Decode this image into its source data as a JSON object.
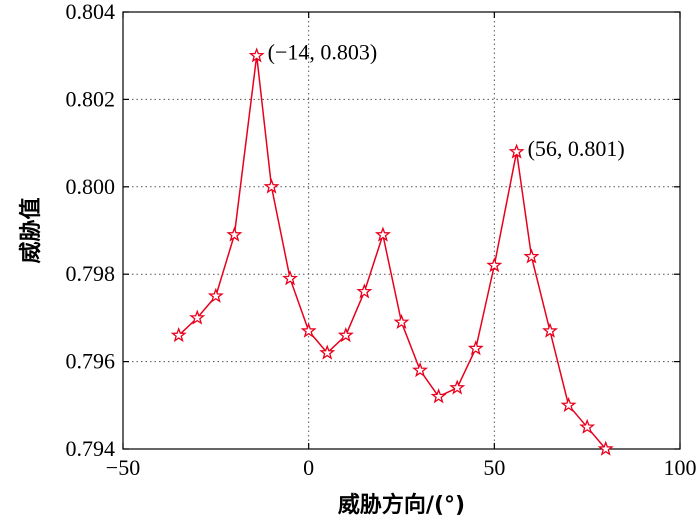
{
  "chart_data": {
    "type": "line",
    "xlabel": "威胁方向/(°)",
    "ylabel": "威胁值",
    "xlim": [
      -50,
      100
    ],
    "ylim": [
      0.794,
      0.804
    ],
    "xticks": [
      -50,
      0,
      50,
      100
    ],
    "xtick_labels": [
      "−50",
      "0",
      "50",
      "100"
    ],
    "yticks": [
      0.794,
      0.796,
      0.798,
      0.8,
      0.802,
      0.804
    ],
    "ytick_labels": [
      "0.794",
      "0.796",
      "0.798",
      "0.800",
      "0.802",
      "0.804"
    ],
    "grid": true,
    "series_color": "#e8001c",
    "marker": "star",
    "series": [
      {
        "x": [
          -35,
          -30,
          -25,
          -20,
          -14,
          -10,
          -5,
          0,
          5,
          10,
          15,
          20,
          25,
          30,
          35,
          40,
          45,
          50,
          56,
          60,
          65,
          70,
          75,
          80
        ],
        "y": [
          0.7966,
          0.797,
          0.7975,
          0.7989,
          0.803,
          0.8,
          0.7979,
          0.7967,
          0.7962,
          0.7966,
          0.7976,
          0.7989,
          0.7969,
          0.7958,
          0.7952,
          0.7954,
          0.7963,
          0.7982,
          0.8008,
          0.7984,
          0.7967,
          0.795,
          0.7945,
          0.794
        ]
      }
    ],
    "annotations": [
      {
        "text": "(−14, 0.803)",
        "x": -14,
        "y": 0.803
      },
      {
        "text": "(56, 0.801)",
        "x": 56,
        "y": 0.8008
      }
    ]
  }
}
